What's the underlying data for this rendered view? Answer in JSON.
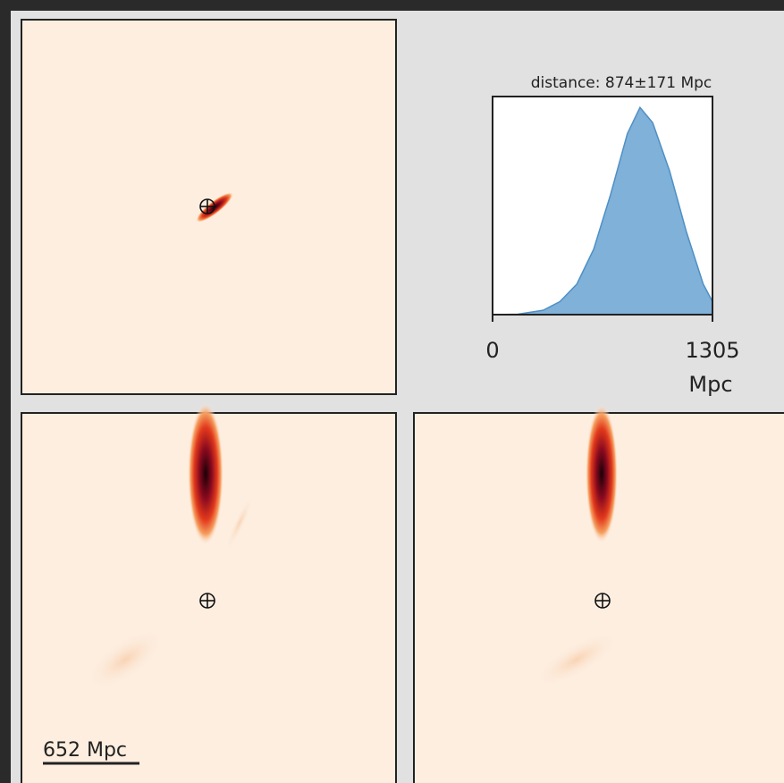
{
  "chart_data": {
    "type": "area",
    "title": "distance: 874±171 Mpc",
    "x_label": "Mpc",
    "x": [
      0,
      150,
      300,
      400,
      500,
      600,
      700,
      800,
      875,
      950,
      1050,
      1150,
      1250,
      1305
    ],
    "values": [
      0,
      0.002,
      0.02,
      0.06,
      0.14,
      0.3,
      0.55,
      0.83,
      0.95,
      0.88,
      0.66,
      0.38,
      0.14,
      0.06
    ],
    "color": "#7fb1d9",
    "xlim": [
      0,
      1305
    ],
    "xticks": [
      0,
      1305
    ],
    "ylim": [
      0,
      1.0
    ]
  },
  "scale_bar": {
    "label": "652 Mpc"
  }
}
